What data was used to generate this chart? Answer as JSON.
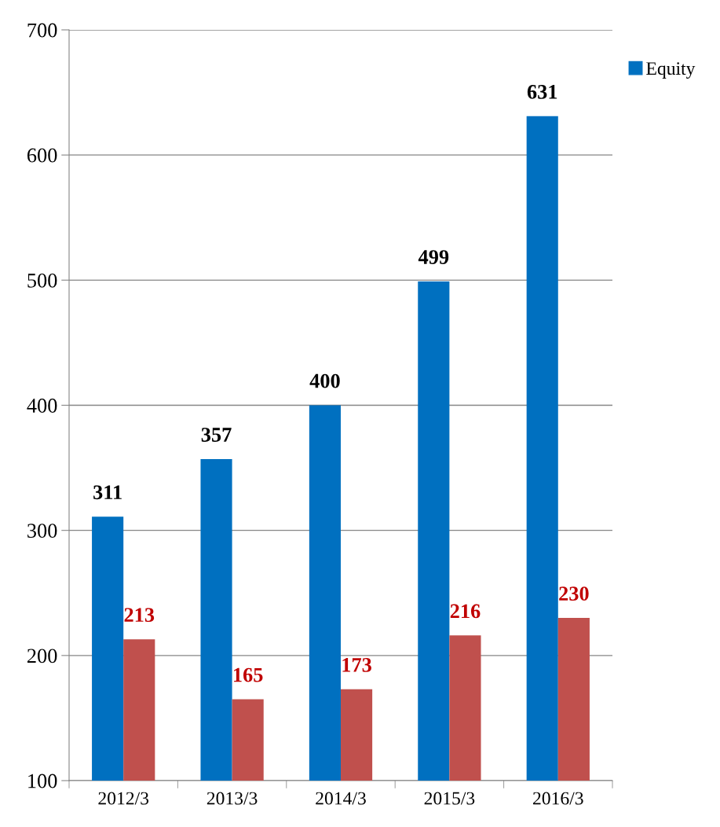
{
  "chart_data": {
    "type": "bar",
    "categories": [
      "2012/3",
      "2013/3",
      "2014/3",
      "2015/3",
      "2016/3"
    ],
    "series": [
      {
        "name": "Equity",
        "color": "#0070c0",
        "values": [
          311,
          357,
          400,
          499,
          631
        ]
      },
      {
        "color": "#c0504d",
        "values": [
          213,
          165,
          173,
          216,
          230
        ]
      }
    ],
    "ylim": [
      100,
      700
    ],
    "yticks": [
      100,
      200,
      300,
      400,
      500,
      600,
      700
    ],
    "grid": "y",
    "legend": "top right",
    "data_labels": true
  }
}
